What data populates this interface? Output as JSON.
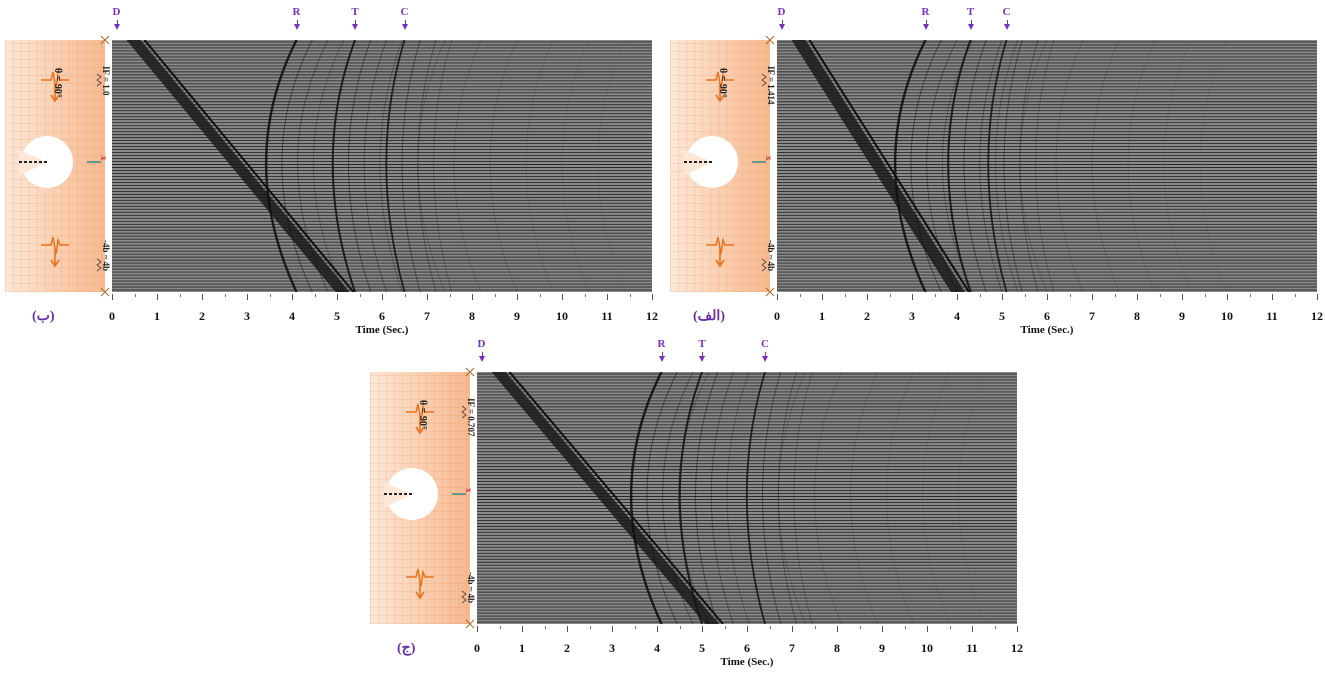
{
  "panels": [
    {
      "id": "b",
      "label": "(ب)",
      "if_label": "IF = 1.0",
      "theta_label": "θ = 90°",
      "bottom_label": "-4b ~ 4b",
      "x_label": "x",
      "phases": [
        "D",
        "R",
        "T",
        "C"
      ],
      "phase_times": [
        0.1,
        4.1,
        5.4,
        6.5
      ],
      "direct_start": 0.5,
      "direct_end": 5.1,
      "arrival_times": {
        "R": 4.1,
        "T": 5.4,
        "C": 6.5
      }
    },
    {
      "id": "alef",
      "label": "(الف)",
      "if_label": "IF = 1.414",
      "theta_label": "θ = 90°",
      "bottom_label": "-4b ~ 4b",
      "x_label": "x",
      "phases": [
        "D",
        "R",
        "T",
        "C"
      ],
      "phase_times": [
        0.1,
        3.3,
        4.3,
        5.1
      ],
      "direct_start": 0.5,
      "direct_end": 4.0,
      "arrival_times": {
        "R": 3.3,
        "T": 4.3,
        "C": 5.1
      }
    },
    {
      "id": "j",
      "label": "(ج)",
      "if_label": "IF = 0.707",
      "theta_label": "θ = 90°",
      "bottom_label": "-4b ~ 4b",
      "x_label": "x",
      "phases": [
        "D",
        "R",
        "T",
        "C"
      ],
      "phase_times": [
        0.1,
        4.1,
        5.0,
        6.4
      ],
      "direct_start": 0.5,
      "direct_end": 5.2,
      "arrival_times": {
        "R": 4.1,
        "T": 5.0,
        "C": 6.4
      }
    }
  ],
  "axis": {
    "title": "Time (Sec.)",
    "ticks": [
      "0",
      "1",
      "2",
      "3",
      "4",
      "5",
      "6",
      "7",
      "8",
      "9",
      "10",
      "11",
      "12"
    ],
    "range": [
      0,
      12
    ]
  },
  "colors": {
    "phase": "#7b2fbe",
    "model_orange": "#e8731e",
    "seismogram_bg": "#8a8a8a"
  }
}
